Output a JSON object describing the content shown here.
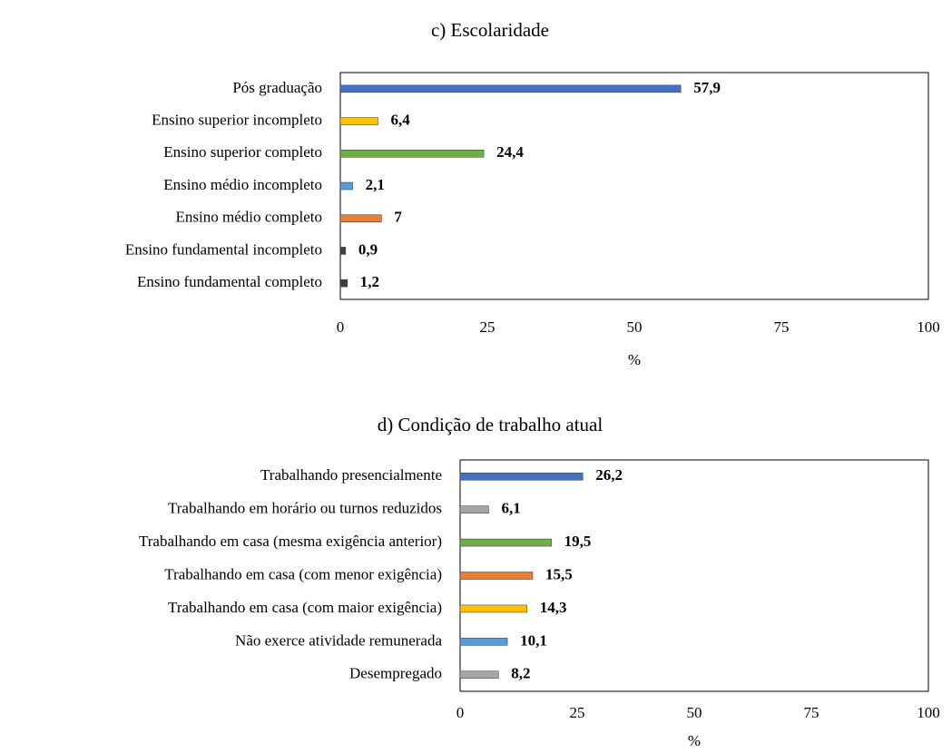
{
  "chart_data": [
    {
      "type": "bar",
      "orientation": "horizontal",
      "title": "c) Escolaridade",
      "xlabel": "%",
      "categories": [
        "Pós graduação",
        "Ensino superior incompleto",
        "Ensino superior completo",
        "Ensino médio incompleto",
        "Ensino médio completo",
        "Ensino fundamental incompleto",
        "Ensino fundamental completo"
      ],
      "values": [
        57.9,
        6.4,
        24.4,
        2.1,
        7,
        0.9,
        1.2
      ],
      "value_labels": [
        "57,9",
        "6,4",
        "24,4",
        "2,1",
        "7",
        "0,9",
        "1,2"
      ],
      "colors": [
        "#4472c4",
        "#ffc000",
        "#70ad47",
        "#5b9bd5",
        "#ed7d31",
        "#404040",
        "#404040"
      ],
      "xlim": [
        0,
        100
      ],
      "xticks": [
        0,
        25,
        50,
        75,
        100
      ]
    },
    {
      "type": "bar",
      "orientation": "horizontal",
      "title": "d) Condição  de trabalho  atual",
      "xlabel": "%",
      "categories": [
        "Trabalhando presencialmente",
        "Trabalhando em horário ou turnos reduzidos",
        "Trabalhando em casa (mesma exigência anterior)",
        "Trabalhando em casa (com menor exigência)",
        "Trabalhando em casa (com maior exigência)",
        "Não exerce atividade remunerada",
        "Desempregado"
      ],
      "values": [
        26.2,
        6.1,
        19.5,
        15.5,
        14.3,
        10.1,
        8.2
      ],
      "value_labels": [
        "26,2",
        "6,1",
        "19,5",
        "15,5",
        "14,3",
        "10,1",
        "8,2"
      ],
      "colors": [
        "#4472c4",
        "#a5a5a5",
        "#70ad47",
        "#ed7d31",
        "#ffc000",
        "#5b9bd5",
        "#a5a5a5"
      ],
      "xlim": [
        0,
        100
      ],
      "xticks": [
        0,
        25,
        50,
        75,
        100
      ]
    }
  ]
}
